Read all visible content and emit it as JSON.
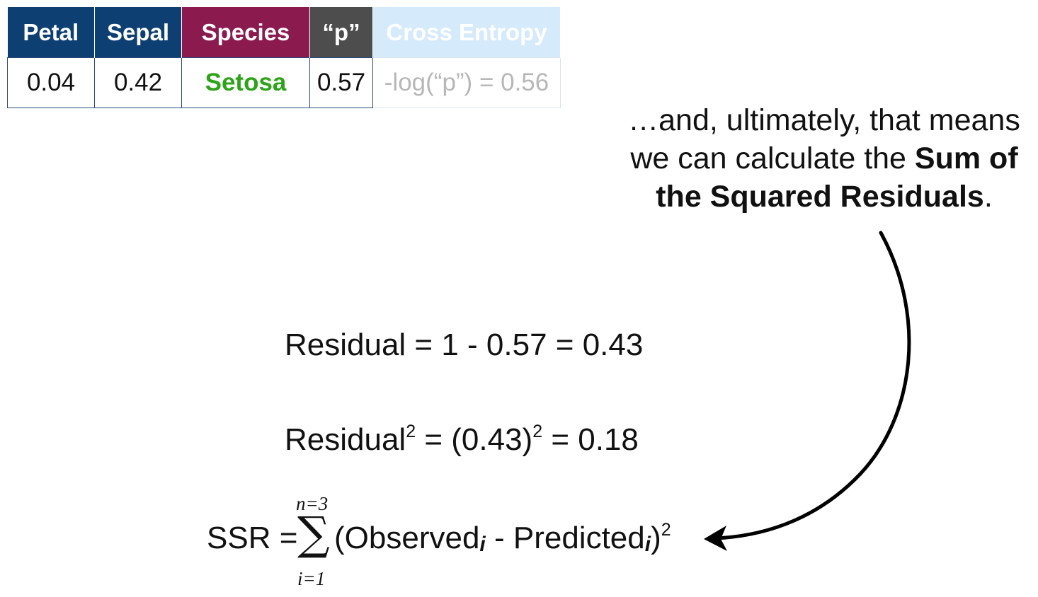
{
  "table": {
    "headers": {
      "petal": "Petal",
      "sepal": "Sepal",
      "species": "Species",
      "p": "“p”",
      "cross_entropy": "Cross Entropy"
    },
    "row": {
      "petal": "0.04",
      "sepal": "0.42",
      "species": "Setosa",
      "p": "0.57",
      "cross_entropy": "-log(“p”) = 0.56"
    }
  },
  "caption": {
    "line1": "…and, ultimately, that means",
    "line2_prefix": "we can calculate the ",
    "line2_bold": "Sum of",
    "line3_bold": "the Squared Residuals",
    "line3_suffix": "."
  },
  "equations": {
    "residual": "Residual = 1 - 0.57 = 0.43",
    "squared": {
      "part1": "Residual",
      "sup1": "2",
      "part2": " = (0.43)",
      "sup2": "2",
      "part3": " = 0.18"
    },
    "ssr": {
      "label": "SSR =",
      "sigma": "∑",
      "upper": "n=3",
      "lower": "i=1",
      "open": "(Observed",
      "sub1": "i",
      "minus": " - Predicted",
      "sub2": "i",
      "close": ")",
      "sup": "2"
    }
  },
  "colors": {
    "header_blue": "#0e3f73",
    "header_species": "#8b1a4f",
    "header_p": "#4d4d4d",
    "header_cross_entropy": "#d5eafb",
    "species_green": "#2ea31a"
  }
}
